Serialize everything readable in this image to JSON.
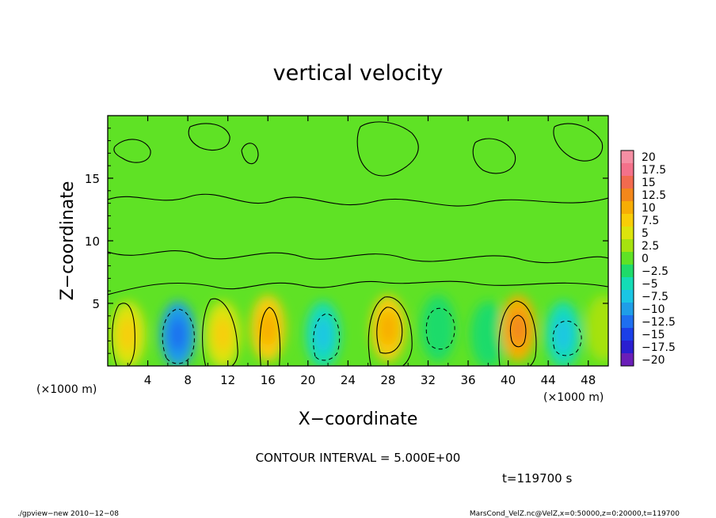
{
  "chart_data": {
    "type": "heatmap",
    "title": "vertical velocity",
    "xlabel": "X−coordinate",
    "ylabel": "Z−coordinate",
    "x_unit": "(×1000 m)",
    "x_unit_right": "(×1000 m)",
    "x_ticks": [
      4,
      8,
      12,
      16,
      20,
      24,
      28,
      32,
      36,
      40,
      44,
      48
    ],
    "x_tick_labels": [
      "4",
      "8",
      "12",
      "16",
      "20",
      "24",
      "28",
      "32",
      "36",
      "40",
      "44",
      "48"
    ],
    "y_ticks": [
      5,
      10,
      15
    ],
    "y_tick_labels": [
      "5",
      "10",
      "15"
    ],
    "xlim": [
      0,
      50
    ],
    "ylim": [
      0,
      20
    ],
    "colorbar_levels": [
      20,
      17.5,
      15,
      12.5,
      10,
      7.5,
      5,
      2.5,
      0,
      -2.5,
      -5,
      -7.5,
      -10,
      -12.5,
      -15,
      -17.5,
      -20
    ],
    "colorbar_labels": [
      "20",
      "17.5",
      "15",
      "12.5",
      "10",
      "7.5",
      "5",
      "2.5",
      "0",
      "−2.5",
      "−5",
      "−7.5",
      "−10",
      "−12.5",
      "−15",
      "−17.5",
      "−20"
    ],
    "colorbar_colors": [
      "#f58ea3",
      "#f4718a",
      "#f26a4f",
      "#f3871a",
      "#f7ad05",
      "#f8cd07",
      "#dce40c",
      "#a6e20f",
      "#5fe225",
      "#1edb6a",
      "#14dcb6",
      "#1ac6e4",
      "#1f9ee8",
      "#1e6ff0",
      "#1b3fe8",
      "#2a1ed0",
      "#6a1eb8"
    ],
    "cells": [
      {
        "x": 2,
        "z": 2.5,
        "value": 5
      },
      {
        "x": 7,
        "z": 2.5,
        "value": -10
      },
      {
        "x": 11.5,
        "z": 2.5,
        "value": 5
      },
      {
        "x": 16,
        "z": 3,
        "value": 7.5
      },
      {
        "x": 21.5,
        "z": 2.5,
        "value": -5
      },
      {
        "x": 28,
        "z": 3,
        "value": 7.5
      },
      {
        "x": 33,
        "z": 3,
        "value": -2.5
      },
      {
        "x": 38,
        "z": 2.5,
        "value": -2.5
      },
      {
        "x": 41,
        "z": 3,
        "value": 10
      },
      {
        "x": 45.5,
        "z": 2.5,
        "value": -5
      },
      {
        "x": 49.5,
        "z": 3,
        "value": 2.5
      }
    ],
    "contour_interval": "CONTOUR INTERVAL = 5.000E+00",
    "time": "t=119700 s"
  },
  "footer": {
    "left": "./gpview−new   2010−12−08",
    "right": "MarsCond_VelZ.nc@VelZ,x=0:50000,z=0:20000,t=119700"
  }
}
